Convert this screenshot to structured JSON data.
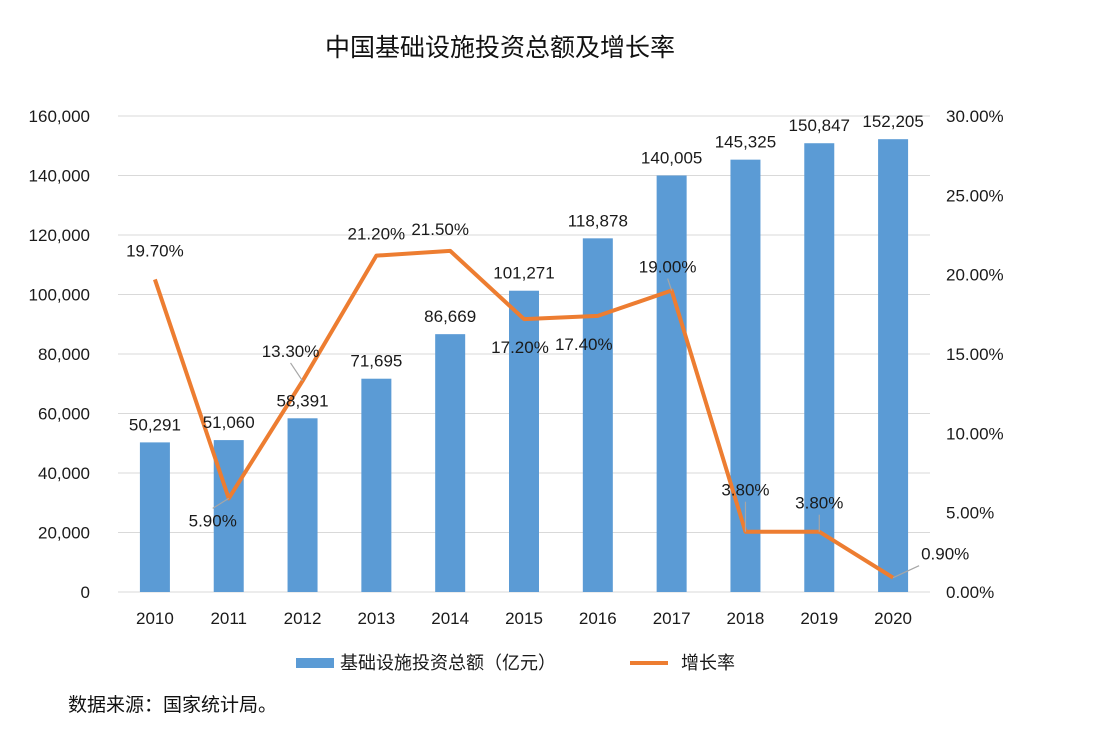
{
  "chart_data": {
    "type": "bar+line",
    "title": "中国基础设施投资总额及增长率",
    "categories": [
      "2010",
      "2011",
      "2012",
      "2013",
      "2014",
      "2015",
      "2016",
      "2017",
      "2018",
      "2019",
      "2020"
    ],
    "series": [
      {
        "name": "基础设施投资总额（亿元）",
        "type": "bar",
        "axis": "left",
        "color": "#5b9bd5",
        "values": [
          50291,
          51060,
          58391,
          71695,
          86669,
          101271,
          118878,
          140005,
          145325,
          150847,
          152205
        ],
        "labels": [
          "50,291",
          "51,060",
          "58,391",
          "71,695",
          "86,669",
          "101,271",
          "118,878",
          "140,005",
          "145,325",
          "150,847",
          "152,205"
        ]
      },
      {
        "name": "增长率",
        "type": "line",
        "axis": "right",
        "color": "#ed7d31",
        "values": [
          19.7,
          5.9,
          13.3,
          21.2,
          21.5,
          17.2,
          17.4,
          19.0,
          3.8,
          3.8,
          0.9
        ],
        "labels": [
          "19.70%",
          "5.90%",
          "13.30%",
          "21.20%",
          "21.50%",
          "17.20%",
          "17.40%",
          "19.00%",
          "3.80%",
          "3.80%",
          "0.90%"
        ]
      }
    ],
    "y_left": {
      "ylim": [
        0,
        160000
      ],
      "ticks": [
        "0",
        "20,000",
        "40,000",
        "60,000",
        "80,000",
        "100,000",
        "120,000",
        "140,000",
        "160,000"
      ]
    },
    "y_right": {
      "ylim": [
        0,
        30
      ],
      "ticks": [
        "0.00%",
        "5.00%",
        "10.00%",
        "15.00%",
        "20.00%",
        "25.00%",
        "30.00%"
      ]
    },
    "grid": true,
    "legend_position": "bottom-center"
  },
  "source": "数据来源：国家统计局。"
}
